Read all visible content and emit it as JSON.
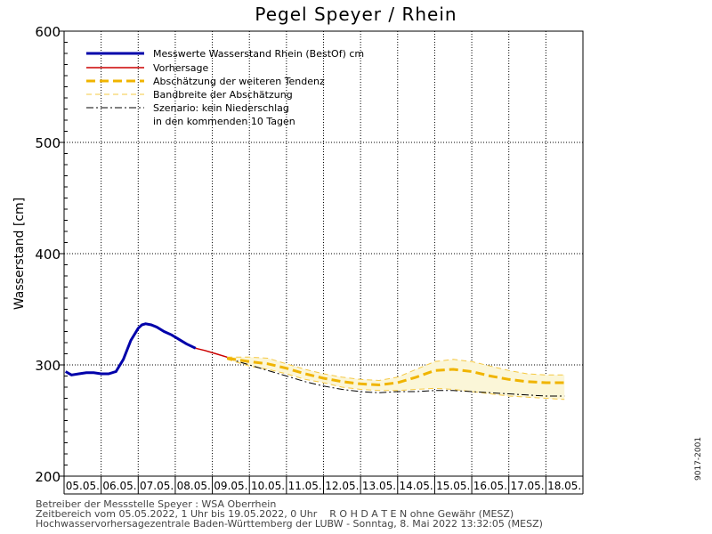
{
  "page": {
    "title": "Pegel Speyer / Rhein",
    "side_id": "9017-2001"
  },
  "footer": {
    "line1": "Betreiber der Messstelle Speyer : WSA Oberrhein",
    "line2": "Zeitbereich vom 05.05.2022, 1 Uhr bis 19.05.2022, 0 Uhr    R O H D A T E N ohne Gewähr (MESZ)",
    "line3": "Hochwasservorhersagezentrale Baden-Württemberg der LUBW - Sonntag, 8. Mai 2022 13:32:05 (MESZ)"
  },
  "chart_data": {
    "type": "line",
    "ylabel": "Wasserstand [cm]",
    "xlabel": "",
    "ylim": [
      200,
      600
    ],
    "yticks": [
      200,
      300,
      400,
      500,
      600
    ],
    "xlim": [
      0,
      14
    ],
    "x_unit": "days since 05.05.2022 00:00",
    "categories": [
      "05.05.",
      "06.05.",
      "07.05.",
      "08.05.",
      "09.05.",
      "10.05.",
      "11.05.",
      "12.05.",
      "13.05.",
      "14.05.",
      "15.05.",
      "16.05.",
      "17.05.",
      "18.05."
    ],
    "grid": true,
    "legend_position": "top-left",
    "legend": [
      {
        "label": "Messwerte Wasserstand Rhein (BestOf)   cm",
        "style": "thick-solid",
        "color": "#0000aa"
      },
      {
        "label": "Vorhersage",
        "style": "solid",
        "color": "#cc0000"
      },
      {
        "label": "Abschätzung der weiteren Tendenz",
        "style": "thick-dashed",
        "color": "#f0b400"
      },
      {
        "label": "Bandbreite der Abschätzung",
        "style": "thin-dashed",
        "color": "#f5c842"
      },
      {
        "label": "Szenario: kein Niederschlag",
        "style": "dash-dot",
        "color": "#000000"
      },
      {
        "label": "in den kommenden 10 Tagen",
        "style": "none",
        "color": "#000000"
      }
    ],
    "series": [
      {
        "name": "Messwerte Wasserstand Rhein (BestOf)   cm",
        "color": "#0000aa",
        "x": [
          0.04,
          0.2,
          0.4,
          0.6,
          0.8,
          1.0,
          1.2,
          1.4,
          1.6,
          1.8,
          2.0,
          2.1,
          2.2,
          2.35,
          2.5,
          2.7,
          2.9,
          3.1,
          3.3,
          3.55
        ],
        "y": [
          294,
          291,
          292,
          293,
          293,
          292,
          292,
          294,
          305,
          322,
          333,
          336,
          337,
          336,
          334,
          330,
          327,
          323,
          319,
          315
        ]
      },
      {
        "name": "Vorhersage",
        "color": "#cc0000",
        "x": [
          3.55,
          3.8,
          4.1,
          4.4
        ],
        "y": [
          315,
          313,
          310,
          307
        ]
      },
      {
        "name": "Abschätzung der weiteren Tendenz",
        "color": "#f0b400",
        "x": [
          4.4,
          5.0,
          5.5,
          6.0,
          6.5,
          7.0,
          7.5,
          8.0,
          8.5,
          9.0,
          9.5,
          10.0,
          10.5,
          11.0,
          11.5,
          12.0,
          12.5,
          13.0,
          13.5
        ],
        "y": [
          306,
          303,
          301,
          297,
          292,
          288,
          285,
          283,
          282,
          284,
          289,
          295,
          296,
          294,
          290,
          287,
          285,
          284,
          284
        ]
      },
      {
        "name": "Bandbreite der Abschätzung (oben)",
        "color": "#f5c842",
        "x": [
          4.4,
          5.0,
          5.5,
          6.0,
          6.5,
          7.0,
          7.5,
          8.0,
          8.5,
          9.0,
          9.5,
          10.0,
          10.5,
          11.0,
          11.5,
          12.0,
          12.5,
          13.0,
          13.5
        ],
        "y": [
          307,
          307,
          306,
          301,
          296,
          292,
          289,
          287,
          286,
          289,
          296,
          303,
          305,
          303,
          299,
          295,
          292,
          291,
          291
        ]
      },
      {
        "name": "Bandbreite der Abschätzung (unten)",
        "color": "#f5c842",
        "x": [
          4.4,
          5.0,
          5.5,
          6.0,
          6.5,
          7.0,
          7.5,
          8.0,
          8.5,
          9.0,
          9.5,
          10.0,
          10.5,
          11.0,
          11.5,
          12.0,
          12.5,
          13.0,
          13.5
        ],
        "y": [
          305,
          299,
          296,
          292,
          287,
          284,
          280,
          278,
          277,
          277,
          278,
          279,
          278,
          276,
          274,
          272,
          271,
          270,
          269
        ]
      },
      {
        "name": "Szenario: kein Niederschlag",
        "color": "#000000",
        "x": [
          4.4,
          5.0,
          5.5,
          6.0,
          6.5,
          7.0,
          7.5,
          8.0,
          8.5,
          9.0,
          9.5,
          10.0,
          10.5,
          11.0,
          11.5,
          12.0,
          12.5,
          13.0,
          13.5
        ],
        "y": [
          306,
          300,
          295,
          290,
          285,
          281,
          278,
          276,
          275,
          276,
          276,
          277,
          277,
          276,
          275,
          274,
          273,
          272,
          272
        ]
      }
    ]
  }
}
